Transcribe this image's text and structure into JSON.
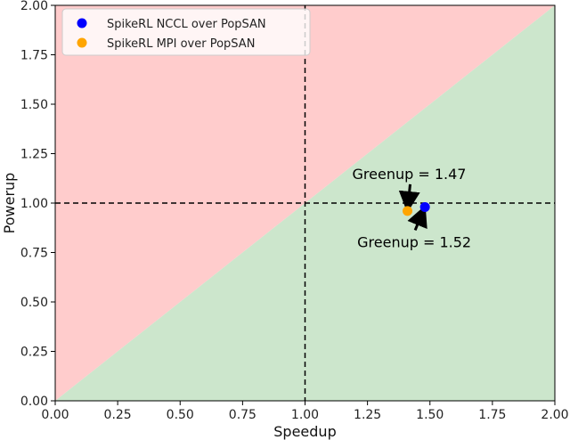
{
  "chart_data": {
    "type": "scatter",
    "xlabel": "Speedup",
    "ylabel": "Powerup",
    "xlim": [
      0,
      2
    ],
    "ylim": [
      0,
      2
    ],
    "x_ticks": [
      "0.00",
      "0.25",
      "0.50",
      "0.75",
      "1.00",
      "1.25",
      "1.50",
      "1.75",
      "2.00"
    ],
    "y_ticks": [
      "0.00",
      "0.25",
      "0.50",
      "0.75",
      "1.00",
      "1.25",
      "1.50",
      "1.75",
      "2.00"
    ],
    "grid": false,
    "legend_position": "top-left",
    "regions": [
      {
        "name": "above-diagonal",
        "color": "#ffcccc"
      },
      {
        "name": "below-diagonal",
        "color": "#cce6cc"
      }
    ],
    "reference_lines": {
      "x": 1.0,
      "y": 1.0,
      "style": "dashed"
    },
    "series": [
      {
        "name": "SpikeRL NCCL over PopSAN",
        "color": "#0000ff",
        "x": [
          1.48
        ],
        "y": [
          0.98
        ]
      },
      {
        "name": "SpikeRL MPI over PopSAN",
        "color": "#ffa500",
        "x": [
          1.41
        ],
        "y": [
          0.96
        ]
      }
    ],
    "annotations": [
      {
        "text": "Greenup = 1.47",
        "point_x": 1.41,
        "point_y": 0.96
      },
      {
        "text": "Greenup = 1.52",
        "point_x": 1.48,
        "point_y": 0.98
      }
    ]
  }
}
